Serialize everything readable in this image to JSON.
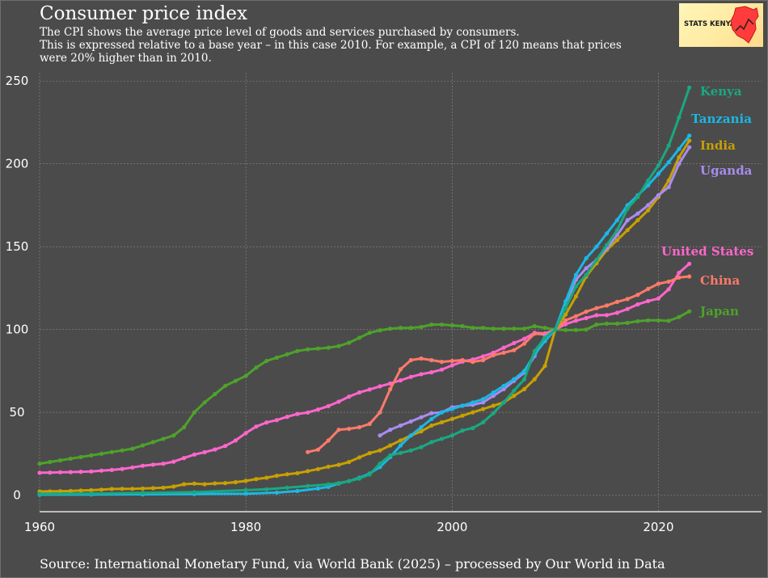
{
  "header": {
    "title": "Consumer price index",
    "subtitle_lines": [
      "The CPI shows the average price level of goods and services purchased by consumers.",
      "This is expressed relative to a base year – in this case 2010. For example, a CPI of 120 means that prices",
      "were 20% higher than in 2010."
    ]
  },
  "logo": {
    "text": "STATS KENYA",
    "icon": "kenya-map-icon",
    "color": "#ff3b3b"
  },
  "footer": {
    "source": "Source: International Monetary Fund, via World Bank (2025) – processed by Our World in Data"
  },
  "colors": {
    "background": "#4b4b4b",
    "grid": "#8a8a8a",
    "axis": "#ffffff"
  },
  "chart_data": {
    "type": "line",
    "title": "Consumer price index",
    "xlim": [
      1960,
      2030
    ],
    "ylim": [
      -10,
      255
    ],
    "x_ticks": [
      1960,
      1980,
      2000,
      2020
    ],
    "y_ticks": [
      0,
      50,
      100,
      150,
      200,
      250
    ],
    "grid": true,
    "legend": "direct labels at line ends (right)",
    "series": [
      {
        "name": "Japan",
        "color": "#4ea22a",
        "x": [
          1960,
          1961,
          1962,
          1963,
          1964,
          1965,
          1966,
          1967,
          1968,
          1969,
          1970,
          1971,
          1972,
          1973,
          1974,
          1975,
          1976,
          1977,
          1978,
          1979,
          1980,
          1981,
          1982,
          1983,
          1984,
          1985,
          1986,
          1987,
          1988,
          1989,
          1990,
          1991,
          1992,
          1993,
          1994,
          1995,
          1996,
          1997,
          1998,
          1999,
          2000,
          2001,
          2002,
          2003,
          2004,
          2005,
          2006,
          2007,
          2008,
          2009,
          2010,
          2011,
          2012,
          2013,
          2014,
          2015,
          2016,
          2017,
          2018,
          2019,
          2020,
          2021,
          2022,
          2023
        ],
        "y": [
          19,
          20,
          21,
          22,
          23,
          24,
          25,
          26,
          27,
          28,
          30,
          32,
          34,
          36,
          41,
          50,
          56,
          61,
          66,
          69,
          72,
          77,
          81,
          83,
          85,
          87,
          88,
          88.5,
          89,
          90,
          92,
          95,
          98,
          99.5,
          100.5,
          101,
          101,
          101.5,
          103,
          103,
          102.5,
          102,
          101,
          101,
          100.5,
          100.5,
          100.5,
          100.5,
          102,
          101,
          100,
          99.7,
          99.7,
          100,
          103,
          103.5,
          103.5,
          104,
          105,
          105.5,
          105.5,
          105.2,
          107.5,
          111
        ]
      },
      {
        "name": "United States",
        "color": "#ff66cc",
        "x": [
          1960,
          1961,
          1962,
          1963,
          1964,
          1965,
          1966,
          1967,
          1968,
          1969,
          1970,
          1971,
          1972,
          1973,
          1974,
          1975,
          1976,
          1977,
          1978,
          1979,
          1980,
          1981,
          1982,
          1983,
          1984,
          1985,
          1986,
          1987,
          1988,
          1989,
          1990,
          1991,
          1992,
          1993,
          1994,
          1995,
          1996,
          1997,
          1998,
          1999,
          2000,
          2001,
          2002,
          2003,
          2004,
          2005,
          2006,
          2007,
          2008,
          2009,
          2010,
          2011,
          2012,
          2013,
          2014,
          2015,
          2016,
          2017,
          2018,
          2019,
          2020,
          2021,
          2022,
          2023
        ],
        "y": [
          13.5,
          13.6,
          13.8,
          13.9,
          14.1,
          14.3,
          14.8,
          15.2,
          15.8,
          16.7,
          17.7,
          18.4,
          19,
          20.2,
          22.4,
          24.5,
          25.9,
          27.6,
          29.7,
          33,
          37.5,
          41.4,
          43.9,
          45.3,
          47.3,
          49,
          49.9,
          51.7,
          53.8,
          56.4,
          59.5,
          62,
          63.8,
          65.7,
          67.4,
          69.3,
          71.4,
          73,
          74.2,
          75.8,
          78.4,
          80.6,
          81.9,
          83.8,
          86,
          89,
          91.8,
          94.4,
          98,
          97.6,
          100,
          103.2,
          105.3,
          106.9,
          108.6,
          108.7,
          110.1,
          112.4,
          115.2,
          117.2,
          118.7,
          124.3,
          134.2,
          139.7
        ]
      },
      {
        "name": "China",
        "color": "#ff7a6b",
        "x": [
          1986,
          1987,
          1988,
          1989,
          1990,
          1991,
          1992,
          1993,
          1994,
          1995,
          1996,
          1997,
          1998,
          1999,
          2000,
          2001,
          2002,
          2003,
          2004,
          2005,
          2006,
          2007,
          2008,
          2009,
          2010,
          2011,
          2012,
          2013,
          2014,
          2015,
          2016,
          2017,
          2018,
          2019,
          2020,
          2021,
          2022,
          2023
        ],
        "y": [
          26,
          27.5,
          33,
          39.5,
          40,
          41,
          43,
          50,
          64,
          76,
          81.5,
          82.5,
          81.5,
          80.5,
          81,
          81.5,
          80.5,
          81.5,
          84.5,
          86,
          87.5,
          91.5,
          97.5,
          97,
          100,
          105.5,
          108,
          110.8,
          112.9,
          114.5,
          116.7,
          118.4,
          121,
          124.5,
          127.6,
          128.9,
          131.4,
          132
        ]
      },
      {
        "name": "India",
        "color": "#c8a000",
        "x": [
          1960,
          1961,
          1962,
          1963,
          1964,
          1965,
          1966,
          1967,
          1968,
          1969,
          1970,
          1971,
          1972,
          1973,
          1974,
          1975,
          1976,
          1977,
          1978,
          1979,
          1980,
          1981,
          1982,
          1983,
          1984,
          1985,
          1986,
          1987,
          1988,
          1989,
          1990,
          1991,
          1992,
          1993,
          1994,
          1995,
          1996,
          1997,
          1998,
          1999,
          2000,
          2001,
          2002,
          2003,
          2004,
          2005,
          2006,
          2007,
          2008,
          2009,
          2010,
          2011,
          2012,
          2013,
          2014,
          2015,
          2016,
          2017,
          2018,
          2019,
          2020,
          2021,
          2022,
          2023
        ],
        "y": [
          2.2,
          2.3,
          2.4,
          2.5,
          2.8,
          3,
          3.3,
          3.7,
          3.8,
          3.8,
          4,
          4.2,
          4.5,
          5.2,
          6.6,
          7,
          6.6,
          7.1,
          7.3,
          7.8,
          8.6,
          9.7,
          10.5,
          11.7,
          12.6,
          13.3,
          14.5,
          15.7,
          17.2,
          18.3,
          20,
          22.8,
          25.4,
          27,
          30,
          33,
          36,
          38.5,
          42,
          44,
          46,
          48,
          50,
          52,
          54,
          56,
          60,
          64,
          70,
          78,
          100,
          109,
          120,
          132,
          140,
          148,
          154,
          160,
          166,
          172,
          180,
          190,
          204,
          214
        ]
      },
      {
        "name": "Uganda",
        "color": "#a98cf0",
        "x": [
          1993,
          1994,
          1995,
          1996,
          1997,
          1998,
          1999,
          2000,
          2001,
          2002,
          2003,
          2004,
          2005,
          2006,
          2007,
          2008,
          2009,
          2010,
          2011,
          2012,
          2013,
          2014,
          2015,
          2016,
          2017,
          2018,
          2019,
          2020,
          2021,
          2022,
          2023
        ],
        "y": [
          36,
          39.5,
          42,
          44.5,
          47,
          49.5,
          50,
          53,
          54,
          54.5,
          56,
          60,
          64,
          69,
          74,
          84,
          96,
          100,
          115,
          130,
          137,
          142,
          149,
          157,
          166,
          170,
          175,
          181,
          186,
          200,
          210
        ]
      },
      {
        "name": "Tanzania",
        "color": "#1ab8e6",
        "x": [
          1960,
          1965,
          1970,
          1975,
          1980,
          1983,
          1985,
          1987,
          1988,
          1989,
          1990,
          1991,
          1992,
          1993,
          1994,
          1995,
          1996,
          1997,
          1998,
          1999,
          2000,
          2001,
          2002,
          2003,
          2004,
          2005,
          2006,
          2007,
          2008,
          2009,
          2010,
          2011,
          2012,
          2013,
          2014,
          2015,
          2016,
          2017,
          2018,
          2019,
          2020,
          2021,
          2022,
          2023
        ],
        "y": [
          0.3,
          0.4,
          0.5,
          0.7,
          0.9,
          1.5,
          2.5,
          4,
          5,
          7,
          8.5,
          10.5,
          13,
          17,
          23,
          30,
          36,
          41,
          46,
          50,
          52,
          54,
          56,
          58,
          62,
          66,
          70,
          75,
          85,
          93,
          100,
          117,
          133,
          143,
          150,
          158,
          166,
          175,
          181,
          187,
          194,
          201,
          209,
          217
        ]
      },
      {
        "name": "Kenya",
        "color": "#1aa880",
        "x": [
          1960,
          1965,
          1970,
          1975,
          1980,
          1982,
          1984,
          1986,
          1988,
          1989,
          1990,
          1991,
          1992,
          1993,
          1994,
          1995,
          1996,
          1997,
          1998,
          1999,
          2000,
          2001,
          2002,
          2003,
          2004,
          2005,
          2006,
          2007,
          2008,
          2009,
          2010,
          2011,
          2012,
          2013,
          2014,
          2015,
          2016,
          2017,
          2018,
          2019,
          2020,
          2021,
          2022,
          2023
        ],
        "y": [
          0.8,
          1,
          1.3,
          1.8,
          3,
          3.5,
          4.5,
          5.5,
          6.5,
          7.3,
          8.5,
          10,
          12.5,
          19,
          24,
          25.5,
          27,
          29,
          32,
          34,
          36,
          39,
          40.5,
          44,
          49.5,
          56,
          63,
          70,
          87,
          95,
          100,
          113,
          126,
          133,
          142,
          151,
          160,
          173,
          180,
          190,
          199,
          211,
          228,
          246
        ]
      }
    ]
  }
}
